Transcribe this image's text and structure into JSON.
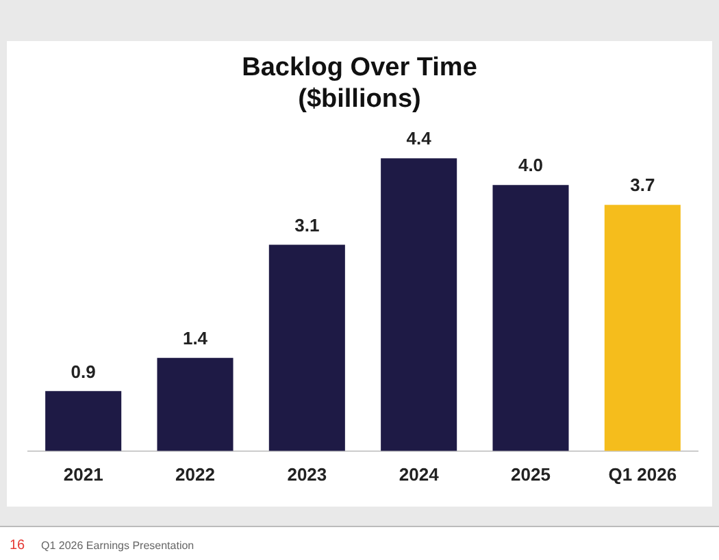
{
  "chart_data": {
    "type": "bar",
    "title": "Backlog Over Time\n($billions)",
    "categories": [
      "2021",
      "2022",
      "2023",
      "2024",
      "2025",
      "Q1 2026"
    ],
    "values": [
      0.9,
      1.4,
      3.1,
      4.4,
      4.0,
      3.7
    ],
    "colors": [
      "#1e1a45",
      "#1e1a45",
      "#1e1a45",
      "#1e1a45",
      "#1e1a45",
      "#f5bd1c"
    ],
    "value_labels": [
      "0.9",
      "1.4",
      "3.1",
      "4.4",
      "4.0",
      "3.7"
    ],
    "grid": false,
    "legend": false,
    "annotations": [
      "16",
      "Q1 2026 Earnings Presentation"
    ]
  }
}
